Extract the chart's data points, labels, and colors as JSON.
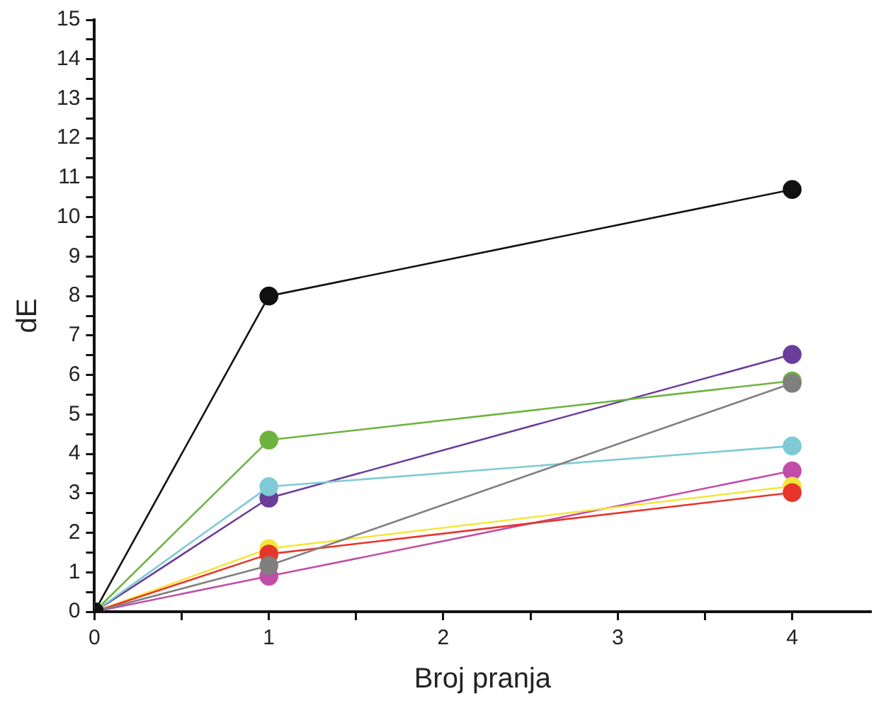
{
  "chart_data": {
    "type": "line",
    "xlabel": "Broj pranja",
    "ylabel": "dE",
    "x": [
      0,
      1,
      4
    ],
    "xlim": [
      0,
      4.45
    ],
    "xticks": [
      0,
      {
        "value": 0.5,
        "label": null
      },
      1,
      {
        "value": 1.5,
        "label": null
      },
      2,
      {
        "value": 2.5,
        "label": null
      },
      3,
      {
        "value": 3.5,
        "label": null
      },
      4
    ],
    "ylim": [
      0,
      15
    ],
    "yticks": [
      0,
      {
        "value": 0.5,
        "label": null
      },
      1,
      {
        "value": 1.5,
        "label": null
      },
      2,
      {
        "value": 2.5,
        "label": null
      },
      3,
      {
        "value": 3.5,
        "label": null
      },
      4,
      {
        "value": 4.5,
        "label": null
      },
      5,
      {
        "value": 5.5,
        "label": null
      },
      6,
      {
        "value": 6.5,
        "label": null
      },
      7,
      {
        "value": 7.5,
        "label": null
      },
      8,
      {
        "value": 8.5,
        "label": null
      },
      9,
      {
        "value": 9.5,
        "label": null
      },
      10,
      {
        "value": 10.5,
        "label": null
      },
      11,
      {
        "value": 11.5,
        "label": null
      },
      12,
      {
        "value": 12.5,
        "label": null
      },
      13,
      {
        "value": 13.5,
        "label": null
      },
      14,
      {
        "value": 14.5,
        "label": null
      },
      15
    ],
    "grid": false,
    "legend": false,
    "marker": "circle",
    "line_style": "solid",
    "series": [
      {
        "color": "#111111",
        "values": [
          0,
          8.0,
          10.7
        ]
      },
      {
        "color": "#7f7f7f",
        "values": [
          0,
          1.17,
          5.79
        ]
      },
      {
        "color": "#6db33f",
        "values": [
          0,
          4.35,
          5.85
        ]
      },
      {
        "color": "#7ecbd6",
        "values": [
          0,
          3.17,
          4.2
        ]
      },
      {
        "color": "#6a3d9a",
        "values": [
          0,
          2.88,
          6.52
        ]
      },
      {
        "color": "#e8352a",
        "values": [
          0,
          1.46,
          3.02
        ]
      },
      {
        "color": "#f5e63a",
        "values": [
          0,
          1.6,
          3.18
        ]
      },
      {
        "color": "#c04ea8",
        "values": [
          0,
          0.9,
          3.57
        ]
      }
    ]
  }
}
